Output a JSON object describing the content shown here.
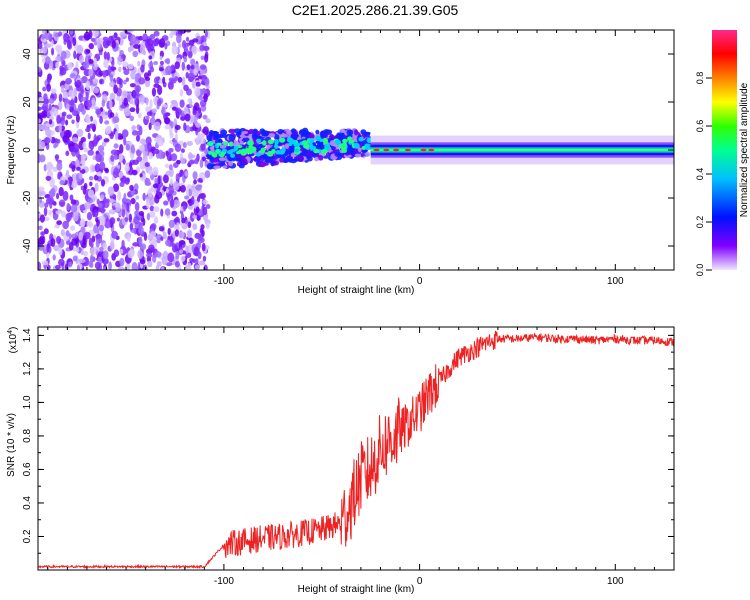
{
  "title": "C2E1.2025.286.21.39.G05",
  "chart_data": [
    {
      "type": "heatmap",
      "panel": "spectrogram",
      "xlabel": "Height of straight line (km)",
      "ylabel": "Frequency (Hz)",
      "xlim": [
        -195,
        130
      ],
      "ylim": [
        -50,
        50
      ],
      "xticks": [
        -100,
        0,
        100
      ],
      "xtick_labels": [
        "-100",
        "0",
        "100"
      ],
      "yticks": [
        -40,
        -20,
        0,
        20,
        40
      ],
      "ytick_labels": [
        "-40",
        "-20",
        "0",
        "20",
        "40"
      ],
      "colorbar": {
        "label": "Normalized spectral amplitude",
        "range": [
          0,
          1
        ],
        "ticks": [
          0.0,
          0.2,
          0.4,
          0.6,
          0.8
        ],
        "tick_labels": [
          "0.0",
          "0.2",
          "0.4",
          "0.6",
          "0.8"
        ],
        "colors": [
          "#e8d8ff",
          "#8000ff",
          "#0000ff",
          "#00c8ff",
          "#00ff80",
          "#40ff00",
          "#ffff00",
          "#ff8000",
          "#ff0000",
          "#ff3090"
        ]
      },
      "regions": [
        {
          "name": "noise",
          "x_range": [
            -195,
            -108
          ],
          "freq_range": [
            -50,
            50
          ],
          "amplitude": 0.15
        },
        {
          "name": "transition",
          "x_range": [
            -108,
            -25
          ],
          "freq_range": [
            -10,
            12
          ],
          "amplitude": 0.35
        },
        {
          "name": "carrier",
          "x_range": [
            -25,
            130
          ],
          "freq_center": 0,
          "freq_halfwidth": 3,
          "amplitude": 0.45
        }
      ]
    },
    {
      "type": "line",
      "panel": "snr",
      "xlabel": "Height of straight line (km)",
      "ylabel": "SNR (10 * v/v)",
      "yscale_label": "(x10",
      "yscale_exp": "4",
      "yscale_suffix": ")",
      "xlim": [
        -195,
        130
      ],
      "ylim": [
        0,
        1.45
      ],
      "xticks": [
        -100,
        0,
        100
      ],
      "xtick_labels": [
        "-100",
        "0",
        "100"
      ],
      "yticks": [
        0.2,
        0.4,
        0.6,
        0.8,
        1.0,
        1.2,
        1.4
      ],
      "ytick_labels": [
        "0.2",
        "0.4",
        "0.6",
        "0.8",
        "1.0",
        "1.2",
        "1.4"
      ],
      "color": "#ee2222",
      "series": [
        {
          "name": "SNR",
          "x": [
            -195,
            -150,
            -110,
            -100,
            -90,
            -80,
            -70,
            -60,
            -50,
            -40,
            -35,
            -30,
            -25,
            -20,
            -15,
            -10,
            -5,
            0,
            5,
            10,
            15,
            20,
            25,
            30,
            35,
            40,
            50,
            60,
            70,
            80,
            90,
            100,
            110,
            120,
            130
          ],
          "y": [
            0.02,
            0.02,
            0.02,
            0.15,
            0.17,
            0.19,
            0.2,
            0.22,
            0.24,
            0.28,
            0.4,
            0.55,
            0.6,
            0.72,
            0.78,
            0.82,
            0.88,
            0.95,
            1.05,
            1.12,
            1.2,
            1.27,
            1.3,
            1.33,
            1.36,
            1.38,
            1.38,
            1.39,
            1.38,
            1.38,
            1.37,
            1.38,
            1.37,
            1.37,
            1.36
          ]
        }
      ]
    }
  ]
}
